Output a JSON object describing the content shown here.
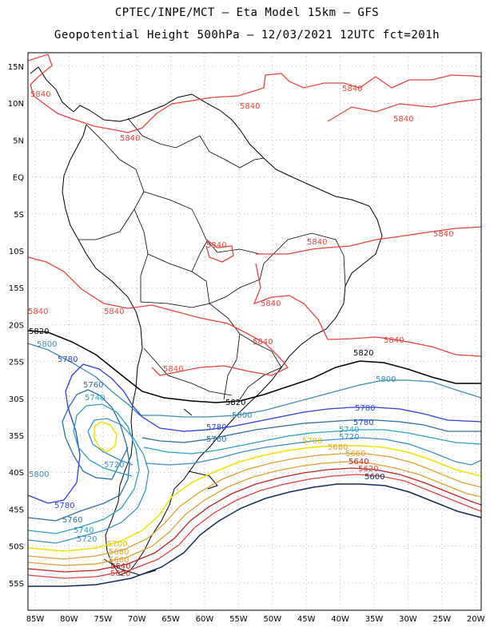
{
  "title_line1": "CPTEC/INPE/MCT –  Eta Model 15km – GFS",
  "title_line2": "Geopotential Height 500hPa – 12/03/2021 12UTC fct=201h",
  "lat_labels": [
    "15N",
    "10N",
    "5N",
    "EQ",
    "5S",
    "10S",
    "15S",
    "20S",
    "25S",
    "30S",
    "35S",
    "40S",
    "45S",
    "50S",
    "55S"
  ],
  "lon_labels": [
    "85W",
    "80W",
    "75W",
    "70W",
    "65W",
    "60W",
    "55W",
    "50W",
    "45W",
    "40W",
    "35W",
    "30W",
    "25W",
    "20W"
  ],
  "colors": {
    "c5840": "#e8443c",
    "c5820": "#000000",
    "c5800": "#3a8cb0",
    "c5780": "#2c3fd8",
    "c5760": "#2a6fa0",
    "c5740": "#2aa0c0",
    "c5720": "#3a90c8",
    "c5700": "#f0e000",
    "c5680": "#e0a030",
    "c5660": "#e0a030",
    "c5640": "#c02020",
    "c5620": "#e04040",
    "c5600": "#102a60"
  },
  "contour_labels": {
    "l5840": "5840",
    "l5820": "5820",
    "l5800": "5800",
    "l5780": "5780",
    "l5760": "5760",
    "l5740": "5740",
    "l5720": "5720",
    "l5700": "5700",
    "l5680": "5680",
    "l5660": "5660",
    "l5640": "5640",
    "l5620": "5620",
    "l5600": "5600"
  }
}
